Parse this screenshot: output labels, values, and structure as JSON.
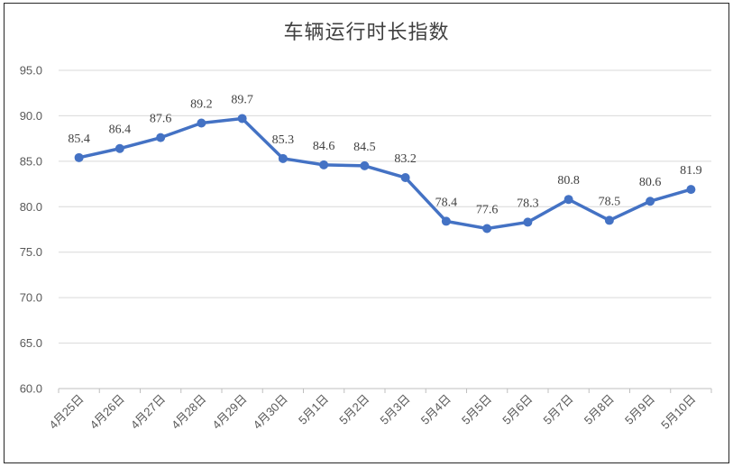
{
  "chart_data": {
    "type": "line",
    "title": "车辆运行时长指数",
    "xlabel": "",
    "ylabel": "",
    "categories": [
      "4月25日",
      "4月26日",
      "4月27日",
      "4月28日",
      "4月29日",
      "4月30日",
      "5月1日",
      "5月2日",
      "5月3日",
      "5月4日",
      "5月5日",
      "5月6日",
      "5月7日",
      "5月8日",
      "5月9日",
      "5月10日"
    ],
    "series": [
      {
        "values": [
          85.4,
          86.4,
          87.6,
          89.2,
          89.7,
          85.3,
          84.6,
          84.5,
          83.2,
          78.4,
          77.6,
          78.3,
          80.8,
          78.5,
          80.6,
          81.9
        ],
        "color": "#4472C4"
      }
    ],
    "data_labels": [
      "85.4",
      "86.4",
      "87.6",
      "89.2",
      "89.7",
      "85.3",
      "84.6",
      "84.5",
      "83.2",
      "78.4",
      "77.6",
      "78.3",
      "80.8",
      "78.5",
      "80.6",
      "81.9"
    ],
    "ylim": [
      60,
      95
    ],
    "y_ticks": [
      "60.0",
      "65.0",
      "70.0",
      "75.0",
      "80.0",
      "85.0",
      "90.0",
      "95.0"
    ],
    "y_tick_values": [
      60,
      65,
      70,
      75,
      80,
      85,
      90,
      95
    ],
    "grid": true,
    "gridline_color": "#d9d9d9",
    "legend": "none"
  }
}
